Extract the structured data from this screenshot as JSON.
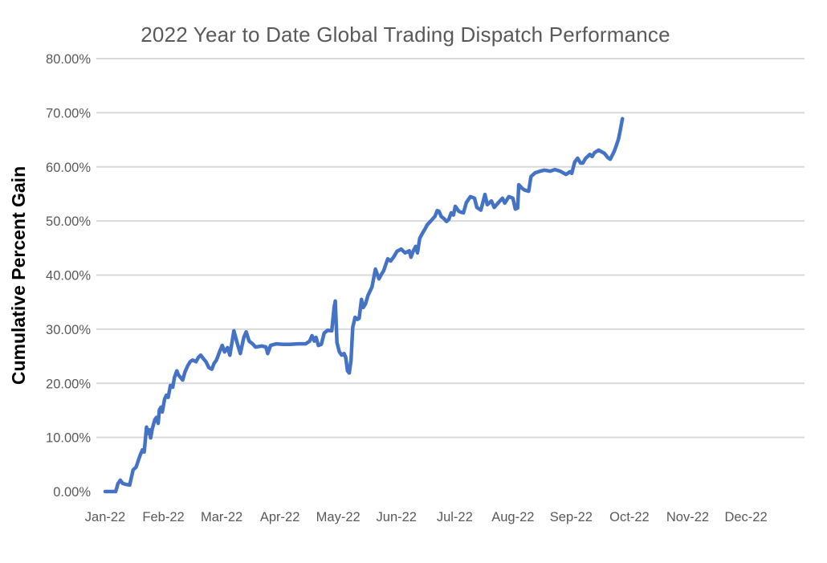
{
  "colors": {
    "line": "#4472C4",
    "gridline": "#D9D9D9",
    "tick_text": "#595959",
    "title_text": "#595959",
    "axis_title_text": "#000000",
    "background": "#FFFFFF"
  },
  "chart_data": {
    "type": "line",
    "title": "2022 Year to Date Global Trading Dispatch Performance",
    "xlabel": "",
    "ylabel": "Cumulative Percent Gain",
    "ylim": [
      0,
      80
    ],
    "grid": "horizontal-only-no-zero-line",
    "legend": "none",
    "x_unit": "months-from-Jan-1-2022",
    "y_unit": "percent",
    "y_ticks": [
      {
        "value": 0,
        "label": "0.00%"
      },
      {
        "value": 10,
        "label": "10.00%"
      },
      {
        "value": 20,
        "label": "20.00%"
      },
      {
        "value": 30,
        "label": "30.00%"
      },
      {
        "value": 40,
        "label": "40.00%"
      },
      {
        "value": 50,
        "label": "50.00%"
      },
      {
        "value": 60,
        "label": "60.00%"
      },
      {
        "value": 70,
        "label": "70.00%"
      },
      {
        "value": 80,
        "label": "80.00%"
      }
    ],
    "x_ticks": [
      "Jan-22",
      "Feb-22",
      "Mar-22",
      "Apr-22",
      "May-22",
      "Jun-22",
      "Jul-22",
      "Aug-22",
      "Sep-22",
      "Oct-22",
      "Nov-22",
      "Dec-22"
    ],
    "series": [
      {
        "name": "Cumulative Percent Gain",
        "color": "#4472C4",
        "points": [
          [
            0.0,
            0.0
          ],
          [
            0.1,
            0.0
          ],
          [
            0.18,
            0.0
          ],
          [
            0.22,
            1.5
          ],
          [
            0.26,
            2.1
          ],
          [
            0.3,
            1.5
          ],
          [
            0.36,
            1.3
          ],
          [
            0.42,
            1.2
          ],
          [
            0.48,
            4.0
          ],
          [
            0.53,
            4.5
          ],
          [
            0.57,
            5.8
          ],
          [
            0.6,
            6.7
          ],
          [
            0.64,
            7.7
          ],
          [
            0.67,
            7.3
          ],
          [
            0.71,
            11.9
          ],
          [
            0.74,
            10.7
          ],
          [
            0.76,
            11.4
          ],
          [
            0.78,
            9.9
          ],
          [
            0.81,
            11.7
          ],
          [
            0.85,
            13.2
          ],
          [
            0.88,
            13.7
          ],
          [
            0.91,
            12.6
          ],
          [
            0.93,
            15.1
          ],
          [
            0.96,
            15.6
          ],
          [
            0.98,
            14.7
          ],
          [
            1.02,
            17.1
          ],
          [
            1.05,
            17.8
          ],
          [
            1.08,
            17.4
          ],
          [
            1.12,
            19.6
          ],
          [
            1.16,
            19.3
          ],
          [
            1.19,
            21.1
          ],
          [
            1.23,
            22.3
          ],
          [
            1.26,
            21.5
          ],
          [
            1.33,
            20.6
          ],
          [
            1.37,
            22.1
          ],
          [
            1.42,
            23.3
          ],
          [
            1.46,
            24.0
          ],
          [
            1.5,
            24.3
          ],
          [
            1.56,
            24.0
          ],
          [
            1.6,
            24.8
          ],
          [
            1.64,
            25.2
          ],
          [
            1.69,
            24.5
          ],
          [
            1.73,
            24.0
          ],
          [
            1.78,
            22.9
          ],
          [
            1.83,
            22.6
          ],
          [
            1.87,
            23.7
          ],
          [
            1.91,
            24.3
          ],
          [
            1.97,
            26.0
          ],
          [
            2.01,
            27.0
          ],
          [
            2.05,
            25.8
          ],
          [
            2.1,
            26.6
          ],
          [
            2.14,
            25.2
          ],
          [
            2.18,
            27.8
          ],
          [
            2.21,
            29.7
          ],
          [
            2.27,
            27.3
          ],
          [
            2.32,
            25.5
          ],
          [
            2.38,
            28.5
          ],
          [
            2.42,
            29.5
          ],
          [
            2.47,
            27.8
          ],
          [
            2.53,
            27.3
          ],
          [
            2.58,
            26.7
          ],
          [
            2.69,
            26.9
          ],
          [
            2.76,
            26.7
          ],
          [
            2.79,
            25.5
          ],
          [
            2.84,
            27.0
          ],
          [
            2.94,
            27.3
          ],
          [
            3.05,
            27.2
          ],
          [
            3.17,
            27.2
          ],
          [
            3.31,
            27.3
          ],
          [
            3.44,
            27.3
          ],
          [
            3.51,
            27.8
          ],
          [
            3.55,
            28.8
          ],
          [
            3.59,
            27.8
          ],
          [
            3.62,
            28.5
          ],
          [
            3.66,
            27.0
          ],
          [
            3.71,
            27.2
          ],
          [
            3.76,
            29.3
          ],
          [
            3.82,
            29.8
          ],
          [
            3.89,
            29.7
          ],
          [
            3.93,
            34.0
          ],
          [
            3.95,
            35.2
          ],
          [
            3.98,
            27.5
          ],
          [
            4.02,
            25.8
          ],
          [
            4.06,
            25.2
          ],
          [
            4.1,
            25.5
          ],
          [
            4.13,
            24.8
          ],
          [
            4.16,
            22.3
          ],
          [
            4.19,
            21.9
          ],
          [
            4.22,
            24.3
          ],
          [
            4.25,
            30.3
          ],
          [
            4.29,
            32.2
          ],
          [
            4.33,
            31.8
          ],
          [
            4.36,
            32.0
          ],
          [
            4.4,
            35.5
          ],
          [
            4.43,
            34.0
          ],
          [
            4.47,
            34.7
          ],
          [
            4.51,
            36.2
          ],
          [
            4.58,
            37.8
          ],
          [
            4.64,
            41.1
          ],
          [
            4.7,
            39.3
          ],
          [
            4.74,
            40.1
          ],
          [
            4.78,
            40.8
          ],
          [
            4.85,
            43.0
          ],
          [
            4.9,
            42.6
          ],
          [
            4.95,
            43.3
          ],
          [
            5.01,
            44.4
          ],
          [
            5.08,
            44.8
          ],
          [
            5.15,
            44.1
          ],
          [
            5.22,
            44.5
          ],
          [
            5.25,
            43.3
          ],
          [
            5.29,
            44.5
          ],
          [
            5.33,
            45.3
          ],
          [
            5.36,
            44.1
          ],
          [
            5.4,
            46.8
          ],
          [
            5.45,
            47.8
          ],
          [
            5.49,
            48.5
          ],
          [
            5.53,
            49.3
          ],
          [
            5.59,
            50.0
          ],
          [
            5.63,
            50.5
          ],
          [
            5.66,
            50.8
          ],
          [
            5.7,
            51.9
          ],
          [
            5.73,
            51.8
          ],
          [
            5.77,
            50.8
          ],
          [
            5.81,
            50.5
          ],
          [
            5.86,
            49.9
          ],
          [
            5.9,
            50.3
          ],
          [
            5.94,
            51.5
          ],
          [
            5.98,
            51.1
          ],
          [
            6.01,
            52.7
          ],
          [
            6.07,
            51.8
          ],
          [
            6.11,
            51.6
          ],
          [
            6.15,
            51.5
          ],
          [
            6.2,
            53.4
          ],
          [
            6.27,
            54.5
          ],
          [
            6.34,
            54.2
          ],
          [
            6.38,
            52.5
          ],
          [
            6.45,
            52.0
          ],
          [
            6.52,
            54.9
          ],
          [
            6.56,
            53.0
          ],
          [
            6.63,
            53.7
          ],
          [
            6.68,
            52.5
          ],
          [
            6.75,
            53.4
          ],
          [
            6.82,
            54.2
          ],
          [
            6.86,
            53.3
          ],
          [
            6.93,
            54.5
          ],
          [
            7.0,
            54.2
          ],
          [
            7.04,
            52.2
          ],
          [
            7.08,
            52.4
          ],
          [
            7.1,
            56.7
          ],
          [
            7.16,
            56.0
          ],
          [
            7.2,
            55.7
          ],
          [
            7.27,
            55.5
          ],
          [
            7.31,
            58.2
          ],
          [
            7.38,
            58.9
          ],
          [
            7.47,
            59.2
          ],
          [
            7.54,
            59.4
          ],
          [
            7.64,
            59.2
          ],
          [
            7.72,
            59.5
          ],
          [
            7.81,
            59.2
          ],
          [
            7.91,
            58.6
          ],
          [
            7.98,
            59.1
          ],
          [
            8.01,
            58.8
          ],
          [
            8.06,
            60.9
          ],
          [
            8.11,
            61.6
          ],
          [
            8.16,
            60.7
          ],
          [
            8.2,
            60.7
          ],
          [
            8.25,
            61.6
          ],
          [
            8.32,
            62.3
          ],
          [
            8.36,
            61.9
          ],
          [
            8.4,
            62.6
          ],
          [
            8.47,
            63.1
          ],
          [
            8.52,
            62.8
          ],
          [
            8.57,
            62.5
          ],
          [
            8.63,
            61.7
          ],
          [
            8.67,
            61.4
          ],
          [
            8.74,
            62.9
          ],
          [
            8.78,
            64.1
          ],
          [
            8.81,
            65.1
          ],
          [
            8.84,
            66.6
          ],
          [
            8.88,
            68.9
          ]
        ]
      }
    ]
  }
}
